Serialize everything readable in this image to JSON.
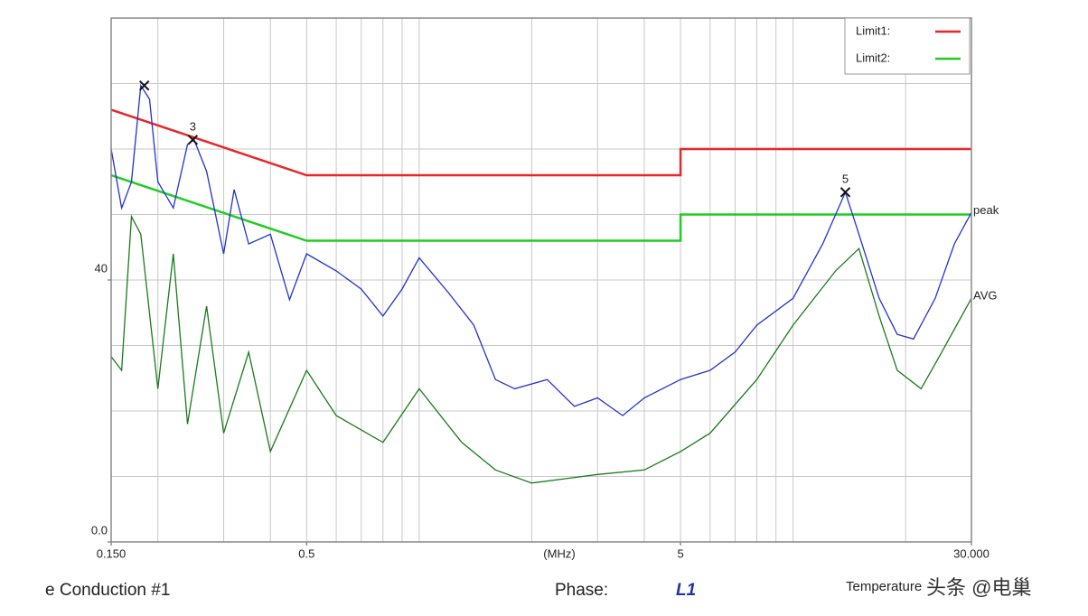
{
  "chart_data": {
    "type": "line",
    "xscale": "log",
    "xlim": [
      0.15,
      30
    ],
    "ylim": [
      0,
      80
    ],
    "xticks": [
      {
        "value": 0.15,
        "label": "0.150"
      },
      0.5,
      5,
      {
        "value": 30,
        "label": "30.000"
      }
    ],
    "xlabel": "(MHz)",
    "yticks": [
      {
        "value": 0,
        "label": "0.0"
      },
      40
    ],
    "xgrid": [
      0.2,
      0.3,
      0.4,
      0.5,
      0.6,
      0.7,
      0.8,
      0.9,
      1,
      2,
      3,
      4,
      5,
      6,
      7,
      8,
      9,
      10,
      20
    ],
    "ygrid": [
      10,
      20,
      30,
      40,
      50,
      60,
      70
    ],
    "series": [
      {
        "name": "Limit1:",
        "color": "#e8262a",
        "in_legend": true,
        "x": [
          0.15,
          0.5,
          5,
          5,
          30
        ],
        "values": [
          66,
          56,
          56,
          60,
          60
        ]
      },
      {
        "name": "Limit2:",
        "color": "#22cc22",
        "in_legend": true,
        "x": [
          0.15,
          0.5,
          5,
          5,
          30
        ],
        "values": [
          56,
          46,
          46,
          50,
          50
        ]
      },
      {
        "name": "peak",
        "color": "#2233cc",
        "in_legend": false,
        "x": [
          0.15,
          0.16,
          0.17,
          0.18,
          0.19,
          0.2,
          0.22,
          0.24,
          0.25,
          0.27,
          0.3,
          0.32,
          0.35,
          0.4,
          0.45,
          0.5,
          0.6,
          0.7,
          0.8,
          0.9,
          1.0,
          1.2,
          1.4,
          1.6,
          1.8,
          2.2,
          2.6,
          3.0,
          3.5,
          4.0,
          5.0,
          6.0,
          7.0,
          8.0,
          10,
          12,
          13.8,
          15,
          17,
          19,
          21,
          24,
          27,
          30
        ],
        "values": [
          60,
          51,
          55,
          69.7,
          67.6,
          55,
          51,
          60.7,
          61.4,
          56.6,
          44,
          53.8,
          45.5,
          47,
          37,
          44,
          41.4,
          38.6,
          34.5,
          38.6,
          43.4,
          38,
          33.1,
          24.8,
          23.4,
          24.8,
          20.7,
          22,
          19.3,
          22,
          24.8,
          26.2,
          29,
          33.1,
          37.2,
          45.5,
          53.4,
          47,
          37.2,
          31.7,
          31,
          37.2,
          45.5,
          50.3
        ]
      },
      {
        "name": "AVG",
        "color": "#1a7a1a",
        "in_legend": false,
        "x": [
          0.15,
          0.16,
          0.17,
          0.18,
          0.2,
          0.22,
          0.24,
          0.27,
          0.3,
          0.35,
          0.4,
          0.5,
          0.6,
          0.8,
          1.0,
          1.3,
          1.6,
          2.0,
          3.0,
          4.0,
          5.0,
          6.0,
          8.0,
          10,
          13,
          15,
          17,
          19,
          22,
          25,
          30
        ],
        "values": [
          28.3,
          26.2,
          49.7,
          47,
          23.4,
          44,
          18,
          36,
          16.6,
          29,
          13.8,
          26.2,
          19.3,
          15.2,
          23.4,
          15.2,
          11,
          9,
          10.3,
          11,
          13.8,
          16.6,
          24.8,
          33.1,
          41.4,
          44.8,
          34.5,
          26.2,
          23.4,
          29,
          37.2
        ]
      }
    ],
    "markers": [
      {
        "x": 0.184,
        "y": 69.7,
        "label": null
      },
      {
        "x": 0.248,
        "y": 61.4,
        "label": "3"
      },
      {
        "x": 13.8,
        "y": 53.4,
        "label": "5"
      }
    ]
  },
  "footer": {
    "title": "e Conduction #1",
    "phase_label": "Phase:",
    "phase": "L1",
    "temperature": "Temperature"
  },
  "watermark": "头条 @电巢"
}
